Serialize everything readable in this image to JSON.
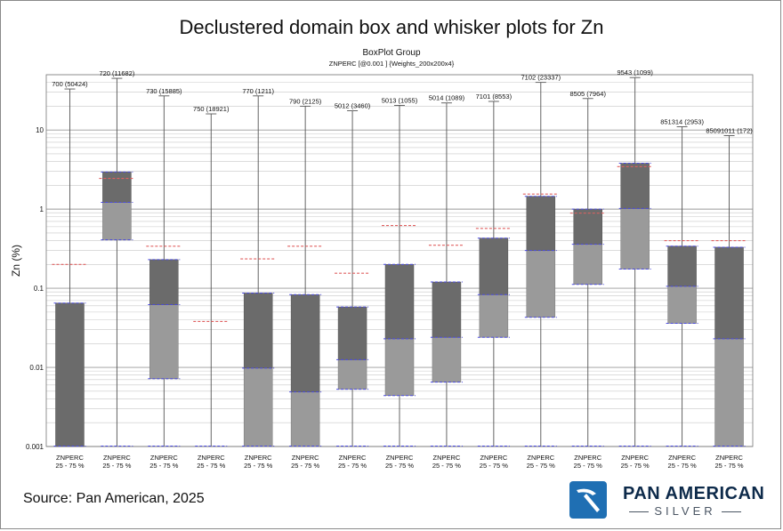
{
  "title": "Declustered domain box and whisker plots for Zn",
  "source": "Source: Pan American, 2025",
  "logo": {
    "name": "PAN AMERICAN",
    "sub": "SILVER"
  },
  "colors": {
    "upper_box": "#6b6b6b",
    "lower_box": "#9a9a9a",
    "mean_line": "#e06060",
    "quartile_line": "#4a4ae0",
    "logo_blue": "#1f6fb3"
  },
  "chart_data": {
    "type": "boxplot",
    "title": "BoxPlot Group",
    "subtitle": "ZNPERC [@0.001 ] {Weights_200x200x4}",
    "ylabel": "Zn (%)",
    "yscale": "log",
    "ylim": [
      0.001,
      50
    ],
    "yticks": [
      0.001,
      0.01,
      0.1,
      1,
      10
    ],
    "ytick_labels": [
      "0.001",
      "0.01",
      "0.1",
      "1",
      "10"
    ],
    "grid": true,
    "boxes": [
      {
        "label": "700 (50424)",
        "xlabel1": "ZNPERC",
        "xlabel2": "25 - 75 %",
        "min": 0.001,
        "q1": 0.001,
        "median": 0.001,
        "q3": 0.065,
        "max": 33,
        "mean": 0.2
      },
      {
        "label": "720 (11682)",
        "xlabel1": "ZNPERC",
        "xlabel2": "25 - 75 %",
        "min": 0.001,
        "q1": 0.41,
        "median": 1.22,
        "q3": 2.95,
        "max": 45,
        "mean": 2.45
      },
      {
        "label": "730 (15885)",
        "xlabel1": "ZNPERC",
        "xlabel2": "25 - 75 %",
        "min": 0.001,
        "q1": 0.0072,
        "median": 0.062,
        "q3": 0.23,
        "max": 27,
        "mean": 0.34
      },
      {
        "label": "750 (18921)",
        "xlabel1": "ZNPERC",
        "xlabel2": "25 - 75 %",
        "min": 0.001,
        "q1": 0.001,
        "median": 0.001,
        "q3": 0.001,
        "max": 16,
        "mean": 0.038
      },
      {
        "label": "770 (1211)",
        "xlabel1": "ZNPERC",
        "xlabel2": "25 - 75 %",
        "min": 0.001,
        "q1": 0.001,
        "median": 0.0098,
        "q3": 0.087,
        "max": 27,
        "mean": 0.235
      },
      {
        "label": "790 (2125)",
        "xlabel1": "ZNPERC",
        "xlabel2": "25 - 75 %",
        "min": 0.001,
        "q1": 0.001,
        "median": 0.0049,
        "q3": 0.083,
        "max": 20,
        "mean": 0.34
      },
      {
        "label": "5012 (3460)",
        "xlabel1": "ZNPERC",
        "xlabel2": "25 - 75 %",
        "min": 0.001,
        "q1": 0.0053,
        "median": 0.0125,
        "q3": 0.058,
        "max": 17.5,
        "mean": 0.155
      },
      {
        "label": "5013 (1055)",
        "xlabel1": "ZNPERC",
        "xlabel2": "25 - 75 %",
        "min": 0.001,
        "q1": 0.0044,
        "median": 0.023,
        "q3": 0.2,
        "max": 20.5,
        "mean": 0.62
      },
      {
        "label": "5014 (1089)",
        "xlabel1": "ZNPERC",
        "xlabel2": "25 - 75 %",
        "min": 0.001,
        "q1": 0.0065,
        "median": 0.024,
        "q3": 0.12,
        "max": 22,
        "mean": 0.35
      },
      {
        "label": "7101 (8553)",
        "xlabel1": "ZNPERC",
        "xlabel2": "25 - 75 %",
        "min": 0.001,
        "q1": 0.024,
        "median": 0.083,
        "q3": 0.43,
        "max": 23,
        "mean": 0.57
      },
      {
        "label": "7102 (23337)",
        "xlabel1": "ZNPERC",
        "xlabel2": "25 - 75 %",
        "min": 0.001,
        "q1": 0.043,
        "median": 0.3,
        "q3": 1.45,
        "max": 40,
        "mean": 1.55
      },
      {
        "label": "8505 (7964)",
        "xlabel1": "ZNPERC",
        "xlabel2": "25 - 75 %",
        "min": 0.001,
        "q1": 0.112,
        "median": 0.36,
        "q3": 1.0,
        "max": 25,
        "mean": 0.89
      },
      {
        "label": "9543 (1099)",
        "xlabel1": "ZNPERC",
        "xlabel2": "25 - 75 %",
        "min": 0.001,
        "q1": 0.175,
        "median": 1.02,
        "q3": 3.8,
        "max": 46,
        "mean": 3.45
      },
      {
        "label": "851314 (2953)",
        "xlabel1": "ZNPERC",
        "xlabel2": "25 - 75 %",
        "min": 0.001,
        "q1": 0.036,
        "median": 0.106,
        "q3": 0.34,
        "max": 11,
        "mean": 0.4
      },
      {
        "label": "85091011 (172)",
        "xlabel1": "ZNPERC",
        "xlabel2": "25 - 75 %",
        "min": 0.001,
        "q1": 0.001,
        "median": 0.023,
        "q3": 0.33,
        "max": 8.5,
        "mean": 0.4
      }
    ]
  }
}
